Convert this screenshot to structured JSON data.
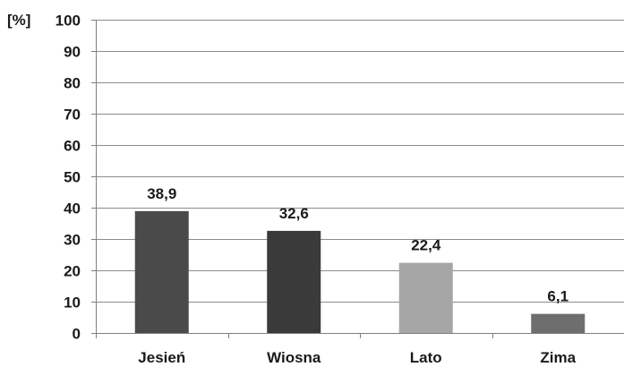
{
  "chart_data": {
    "type": "bar",
    "title": "",
    "xlabel": "",
    "ylabel": "[%]",
    "categories": [
      "Jesień",
      "Wiosna",
      "Lato",
      "Zima"
    ],
    "values": [
      38.9,
      32.6,
      22.4,
      6.1
    ],
    "value_labels": [
      "38,9",
      "32,6",
      "22,4",
      "6,1"
    ],
    "bar_colors": [
      "#4a4a4a",
      "#3a3a3a",
      "#a6a6a6",
      "#6e6e6e"
    ],
    "ylim": [
      0,
      100
    ],
    "yticks": [
      0,
      10,
      20,
      30,
      40,
      50,
      60,
      70,
      80,
      90,
      100
    ],
    "grid": true,
    "legend": "none"
  }
}
